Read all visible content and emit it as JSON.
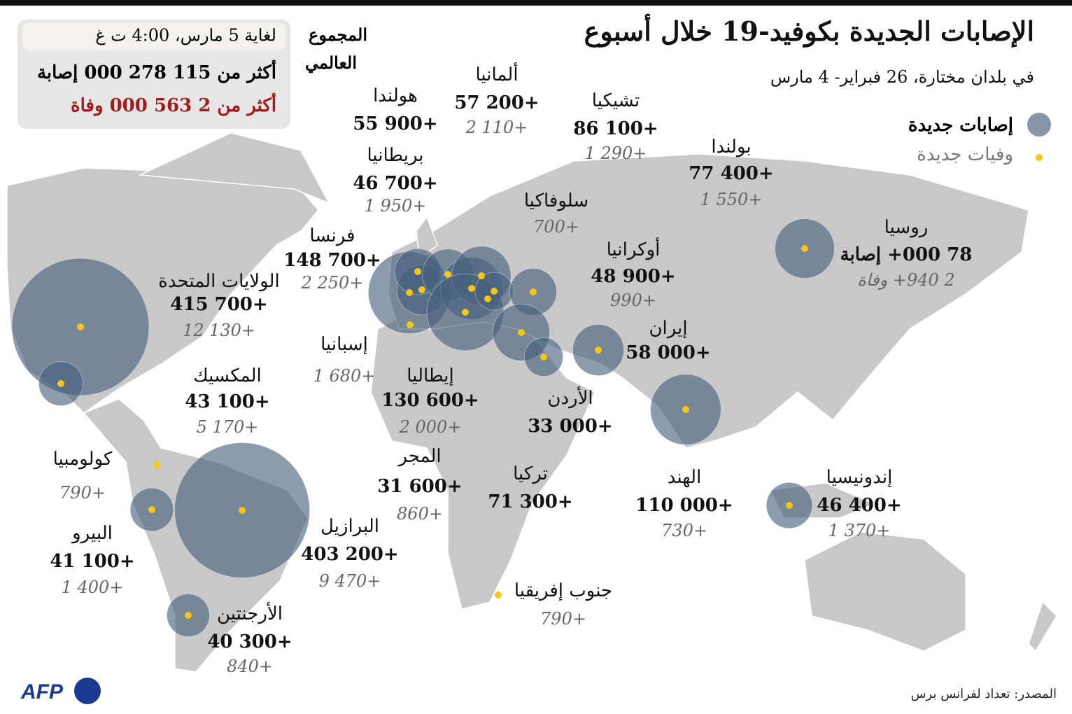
{
  "header": {
    "title": "الإصابات الجديدة بكوفيد-19 خلال أسبوع",
    "subtitle": "في بلدان مختارة، 26 فبراير- 4 مارس"
  },
  "legend": {
    "cases": "إصابات جديدة",
    "deaths": "وفيات جديدة"
  },
  "global": {
    "heading": [
      "المجموع",
      "العالمي"
    ],
    "date": "لغاية 5 مارس، 4:00 ت غ",
    "cases": "أكثر من 115 278 000 إصابة",
    "deaths": "أكثر من 2 563 000 وفاة"
  },
  "countries": [
    {
      "name": "الولايات المتحدة",
      "cases": 415700,
      "cases_label": "415 700+",
      "deaths_label": "12 130+"
    },
    {
      "name": "المكسيك",
      "cases": 43100,
      "cases_label": "43 100+",
      "deaths_label": "5 170+"
    },
    {
      "name": "كولومبيا",
      "deaths_label": "790+"
    },
    {
      "name": "البيرو",
      "cases": 41100,
      "cases_label": "41 100+",
      "deaths_label": "1 400+"
    },
    {
      "name": "البرازيل",
      "cases": 403200,
      "cases_label": "403 200+",
      "deaths_label": "9 470+"
    },
    {
      "name": "الأرجنتين",
      "cases": 40300,
      "cases_label": "40 300+",
      "deaths_label": "840+"
    },
    {
      "name": "فرنسا",
      "cases": 148700,
      "cases_label": "148 700+",
      "deaths_label": "2 250+"
    },
    {
      "name": "إسبانيا",
      "deaths_label": "1 680+"
    },
    {
      "name": "هولندا",
      "cases": 55900,
      "cases_label": "55 900+"
    },
    {
      "name": "بريطانيا",
      "cases": 46700,
      "cases_label": "46 700+",
      "deaths_label": "1 950+"
    },
    {
      "name": "ألمانيا",
      "cases": 57200,
      "cases_label": "57 200+",
      "deaths_label": "2 110+"
    },
    {
      "name": "تشيكيا",
      "cases": 86100,
      "cases_label": "86 100+",
      "deaths_label": "1 290+"
    },
    {
      "name": "بولندا",
      "cases": 77400,
      "cases_label": "77 400+",
      "deaths_label": "1 550+"
    },
    {
      "name": "سلوفاكيا",
      "deaths_label": "700+"
    },
    {
      "name": "إيطاليا",
      "cases": 130600,
      "cases_label": "130 600+",
      "deaths_label": "2 000+"
    },
    {
      "name": "المجر",
      "cases": 31600,
      "cases_label": "31 600+",
      "deaths_label": "860+"
    },
    {
      "name": "أوكرانيا",
      "cases": 48900,
      "cases_label": "48 900+",
      "deaths_label": "990+"
    },
    {
      "name": "تركيا",
      "cases": 71300,
      "cases_label": "71 300+"
    },
    {
      "name": "الأردن",
      "cases": 33000,
      "cases_label": "33 000+"
    },
    {
      "name": "إيران",
      "cases": 58000,
      "cases_label": "58 000+"
    },
    {
      "name": "روسيا",
      "cases": 78000,
      "cases_label": "78 000+ إصابة",
      "deaths_label": "2 940+ وفاة"
    },
    {
      "name": "الهند",
      "cases": 110000,
      "cases_label": "110 000+",
      "deaths_label": "730+"
    },
    {
      "name": "إندونيسيا",
      "cases": 46400,
      "cases_label": "46 400+",
      "deaths_label": "1 370+"
    },
    {
      "name": "جنوب إفريقيا",
      "deaths_label": "790+"
    }
  ],
  "source": "المصدر: تعداد لفرانس برس",
  "logo": "AFP"
}
